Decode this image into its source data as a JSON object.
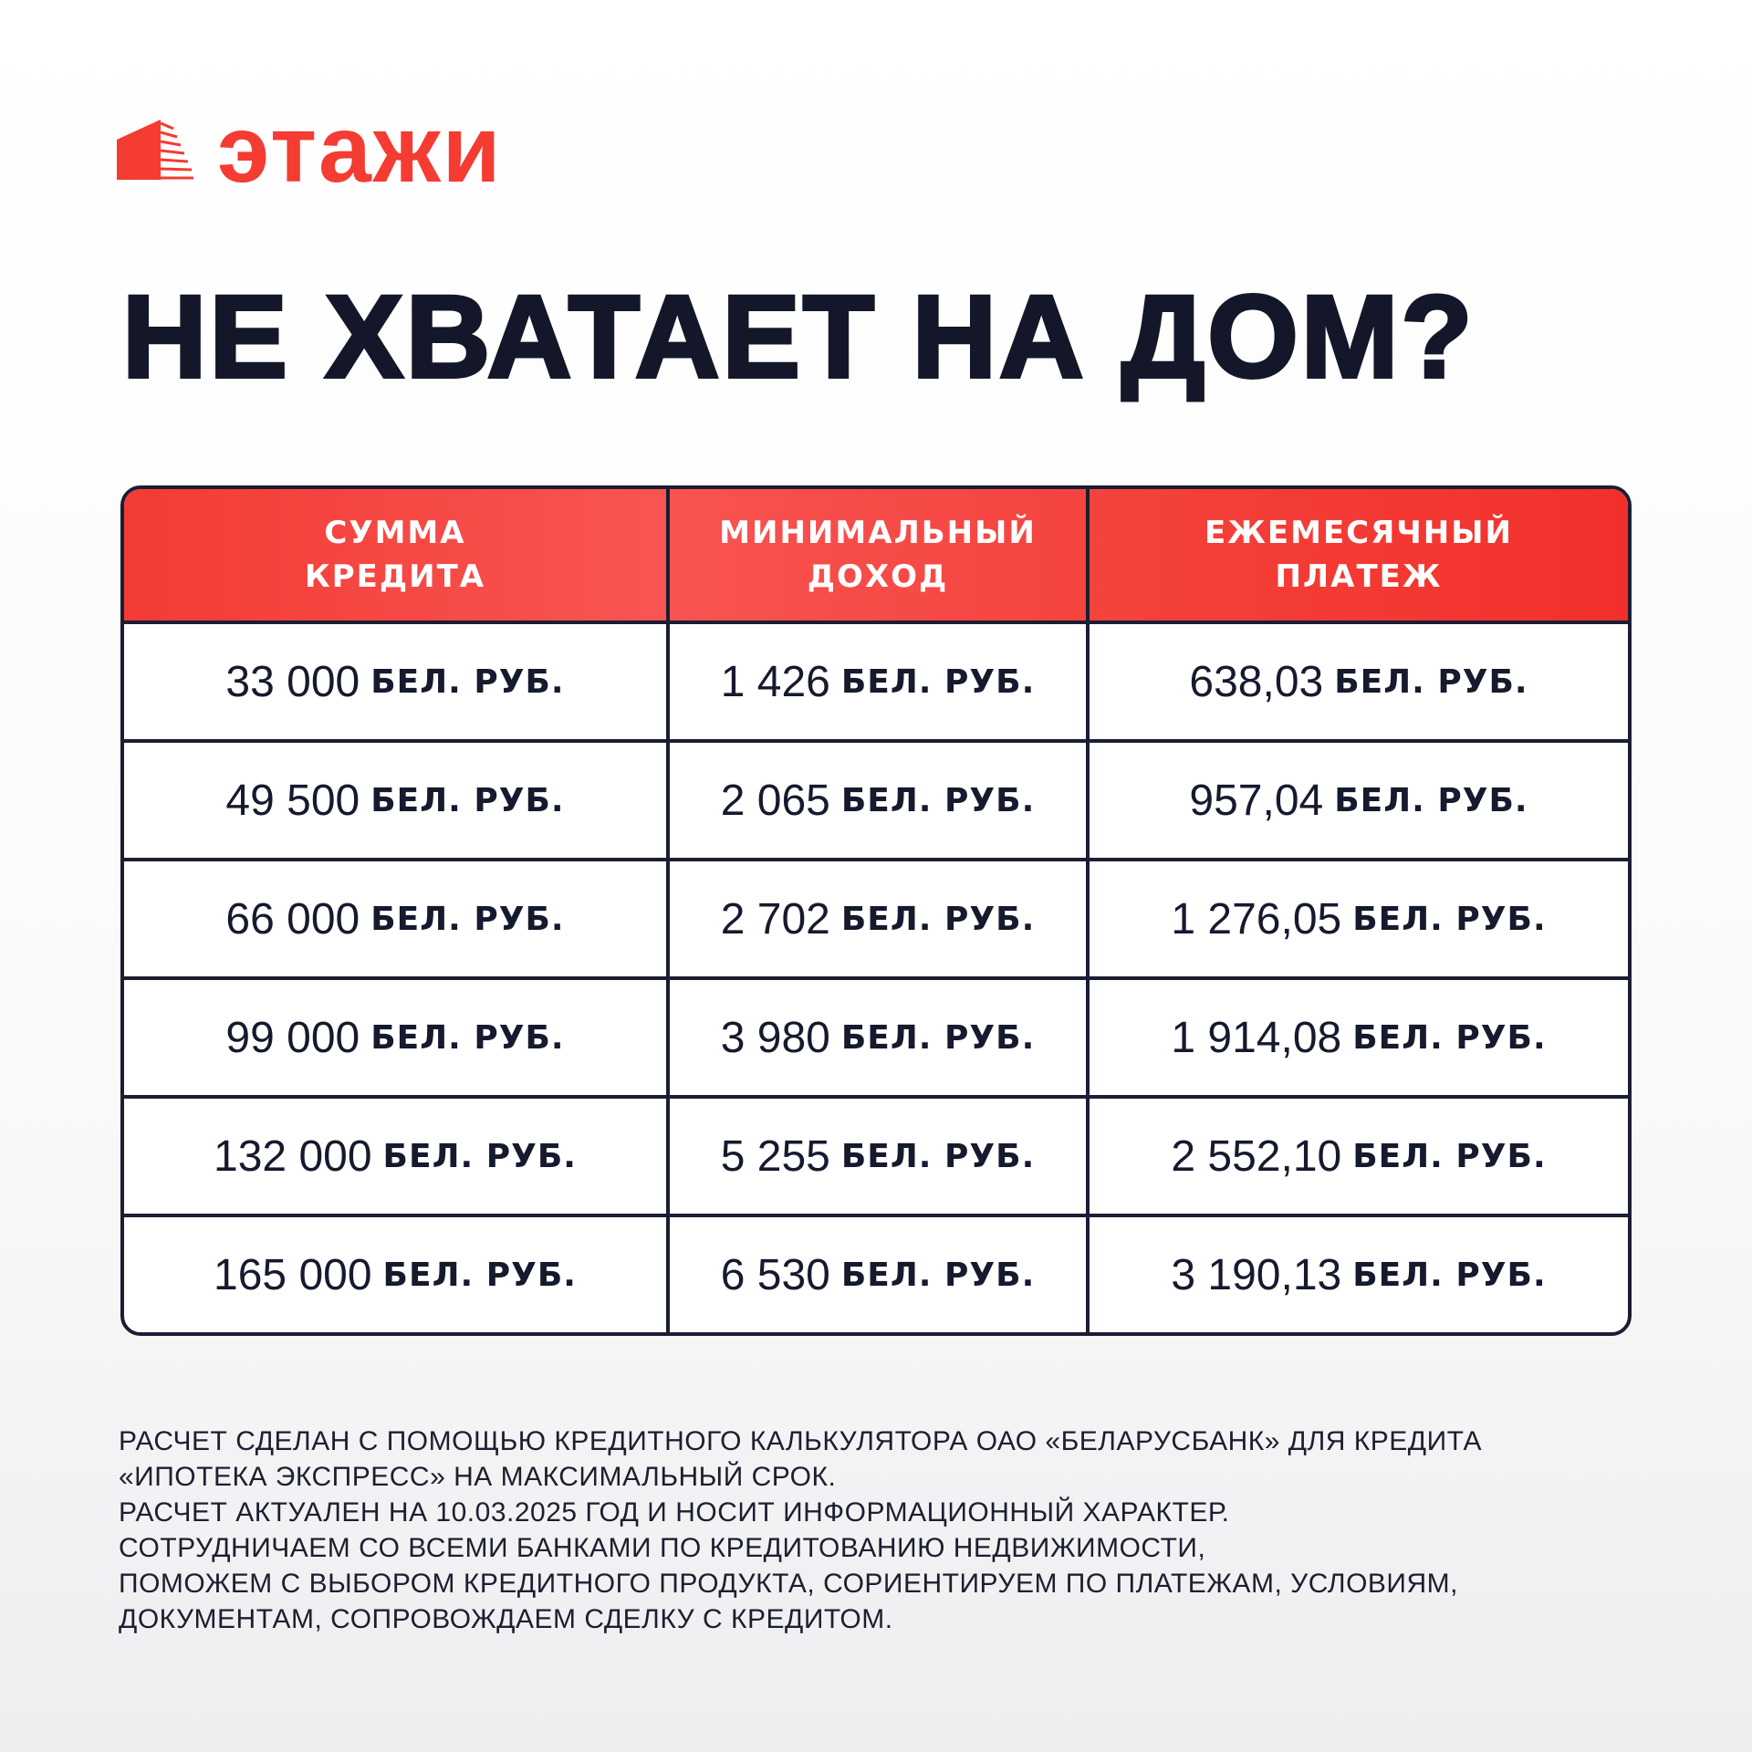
{
  "brand": {
    "name": "этажи",
    "color": "#f43c32"
  },
  "title": "НЕ ХВАТАЕТ НА ДОМ?",
  "table": {
    "headers": [
      [
        "СУММА",
        "КРЕДИТА"
      ],
      [
        "МИНИМАЛЬНЫЙ",
        "ДОХОД"
      ],
      [
        "ЕЖЕМЕСЯЧНЫЙ",
        "ПЛАТЕЖ"
      ]
    ],
    "unit": "БЕЛ. РУБ.",
    "rows": [
      [
        "33 000",
        "1 426",
        "638,03"
      ],
      [
        "49 500",
        "2 065",
        "957,04"
      ],
      [
        "66 000",
        "2 702",
        "1 276,05"
      ],
      [
        "99 000",
        "3 980",
        "1 914,08"
      ],
      [
        "132 000",
        "5 255",
        "2 552,10"
      ],
      [
        "165 000",
        "6 530",
        "3 190,13"
      ]
    ]
  },
  "footer": [
    "РАСЧЕТ СДЕЛАН С ПОМОЩЬЮ КРЕДИТНОГО КАЛЬКУЛЯТОРА ОАО «БЕЛАРУСБАНК» ДЛЯ КРЕДИТА",
    "«ИПОТЕКА ЭКСПРЕСС» НА МАКСИМАЛЬНЫЙ СРОК.",
    "РАСЧЕТ АКТУАЛЕН НА 10.03.2025 ГОД И НОСИТ ИНФОРМАЦИОННЫЙ ХАРАКТЕР.",
    "СОТРУДНИЧАЕМ СО ВСЕМИ БАНКАМИ ПО КРЕДИТОВАНИЮ НЕДВИЖИМОСТИ,",
    "ПОМОЖЕМ С ВЫБОРОМ КРЕДИТНОГО ПРОДУКТА, СОРИЕНТИРУЕМ ПО ПЛАТЕЖАМ, УСЛОВИЯМ,",
    "ДОКУМЕНТАМ, СОПРОВОЖДАЕМ СДЕЛКУ С КРЕДИТОМ."
  ]
}
